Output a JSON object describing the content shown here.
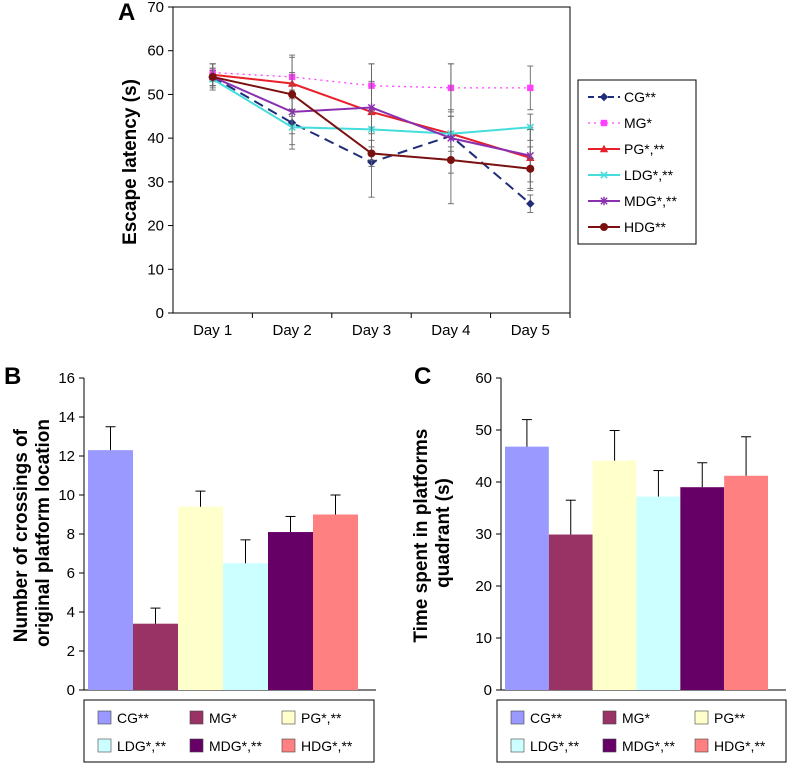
{
  "chart_data": [
    {
      "panel": "A",
      "type": "line",
      "title": "",
      "xlabel": "",
      "ylabel": "Escape latency (s)",
      "ylim": [
        0,
        70
      ],
      "yticks": [
        0,
        10,
        20,
        30,
        40,
        50,
        60,
        70
      ],
      "categories": [
        "Day 1",
        "Day 2",
        "Day 3",
        "Day 4",
        "Day 5"
      ],
      "series": [
        {
          "name": "CG**",
          "color": "#1f2d7a",
          "dash": "10,6",
          "marker": "diamond",
          "values": [
            54,
            43.5,
            34.5,
            40.5,
            25
          ],
          "errors": [
            3,
            6,
            8,
            6,
            2
          ]
        },
        {
          "name": "MG*",
          "color": "#ff40ff",
          "dash": "2,4",
          "marker": "square",
          "values": [
            55,
            54,
            52,
            51.5,
            51.5
          ],
          "errors": [
            2,
            5,
            5,
            5.5,
            5
          ]
        },
        {
          "name": "PG*,**",
          "color": "#e8202a",
          "dash": "",
          "marker": "triangle",
          "values": [
            54.5,
            52.5,
            46,
            41,
            35.5
          ],
          "errors": [
            2.5,
            6,
            11,
            16,
            7
          ]
        },
        {
          "name": "LDG*,**",
          "color": "#44dddd",
          "dash": "",
          "marker": "x",
          "values": [
            53.5,
            42.5,
            42,
            41,
            42.5
          ],
          "errors": [
            2,
            4,
            4,
            4,
            3
          ]
        },
        {
          "name": "MDG*,**",
          "color": "#8a30b0",
          "dash": "",
          "marker": "star",
          "values": [
            54,
            46,
            47,
            40,
            36
          ],
          "errors": [
            2,
            5,
            6,
            5,
            6
          ]
        },
        {
          "name": "HDG**",
          "color": "#7a1010",
          "dash": "",
          "marker": "circle",
          "values": [
            54,
            50,
            36.5,
            35,
            33
          ],
          "errors": [
            2,
            5,
            3,
            3,
            5
          ]
        }
      ]
    },
    {
      "panel": "B",
      "type": "bar",
      "title": "",
      "xlabel": "",
      "ylabel": "Number of crossings of original platform location",
      "ylabel_lines": [
        "Number of crossings of",
        "original platform location"
      ],
      "ylim": [
        0,
        16
      ],
      "yticks": [
        0,
        2,
        4,
        6,
        8,
        10,
        12,
        14,
        16
      ],
      "categories": [
        "CG**",
        "MG*",
        "PG*,**",
        "LDG*,**",
        "MDG*,**",
        "HDG*,**"
      ],
      "values": [
        12.3,
        3.4,
        9.4,
        6.5,
        8.1,
        9.0
      ],
      "errors": [
        1.2,
        0.8,
        0.8,
        1.2,
        0.8,
        1.0
      ],
      "colors": [
        "#9999ff",
        "#993366",
        "#ffffcc",
        "#ccffff",
        "#660066",
        "#ff8080"
      ]
    },
    {
      "panel": "C",
      "type": "bar",
      "title": "",
      "xlabel": "",
      "ylabel": "Time spent in platforms quadrant (s)",
      "ylabel_lines": [
        "Time spent in platforms",
        "quadrant (s)"
      ],
      "ylim": [
        0,
        60
      ],
      "yticks": [
        0,
        10,
        20,
        30,
        40,
        50,
        60
      ],
      "categories": [
        "CG**",
        "MG*",
        "PG**",
        "LDG*,**",
        "MDG*,**",
        "HDG*,**"
      ],
      "values": [
        46.8,
        29.9,
        44.1,
        37.2,
        39.0,
        41.2
      ],
      "errors": [
        5.2,
        6.6,
        5.8,
        5.0,
        4.7,
        7.5
      ],
      "colors": [
        "#9999ff",
        "#993366",
        "#ffffcc",
        "#ccffff",
        "#660066",
        "#ff8080"
      ]
    }
  ]
}
